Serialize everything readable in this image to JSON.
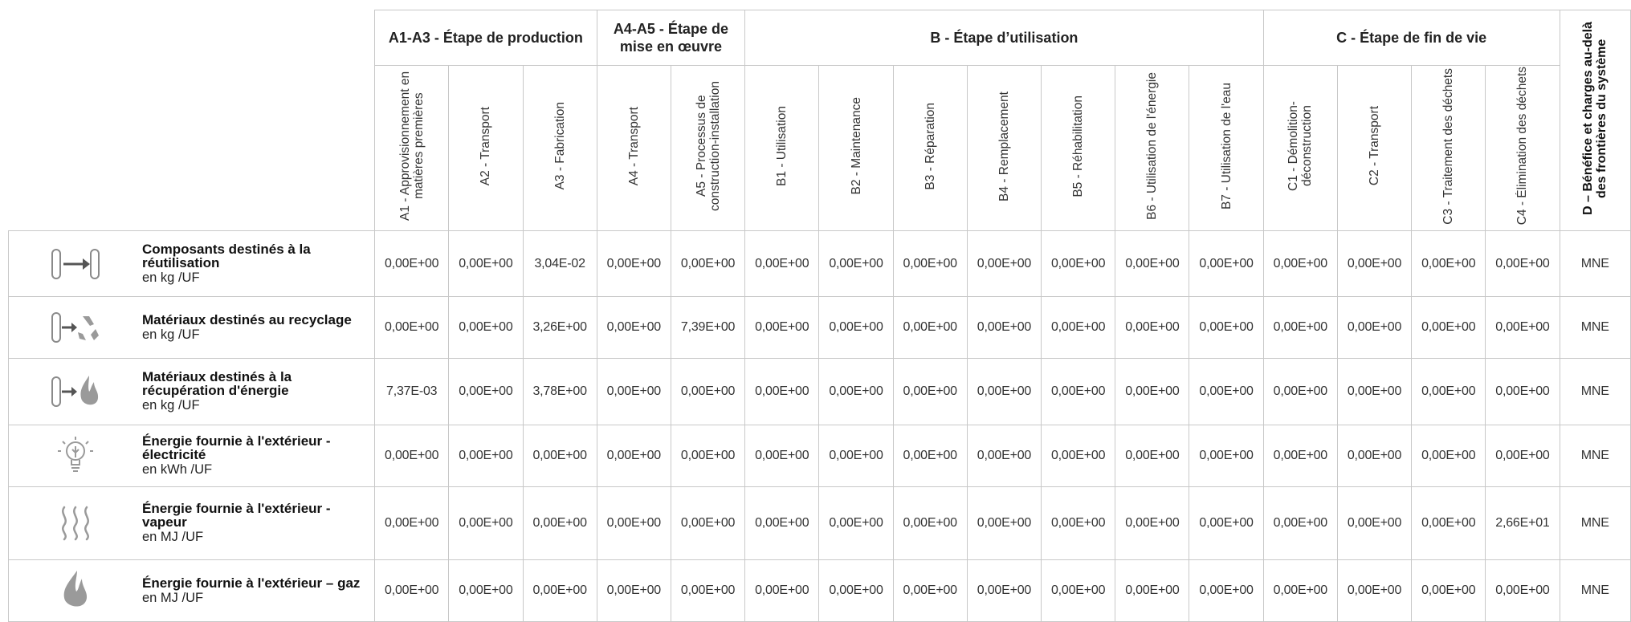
{
  "group_headers": [
    {
      "key": "A1-A3",
      "label": "A1-A3 - Étape de production",
      "span": 3
    },
    {
      "key": "A4-A5",
      "label": "A4-A5 - Étape de mise en œuvre",
      "span": 2
    },
    {
      "key": "B",
      "label": "B - Étape d’utilisation",
      "span": 7
    },
    {
      "key": "C",
      "label": "C - Étape de fin de vie",
      "span": 4
    }
  ],
  "d_header": "D – Bénéfice et charges au-delà des frontières du système",
  "sub_headers": [
    "A1 - Approvisionnement en matières premières",
    "A2 - Transport",
    "A3 - Fabrication",
    "A4 - Transport",
    "A5 - Processus de construction-installation",
    "B1 - Utilisation",
    "B2 - Maintenance",
    "B3 - Réparation",
    "B4 - Remplacement",
    "B5 - Réhabilitation",
    "B6 - Utilisation de l'énergie",
    "B7 - Utilisation de l'eau",
    "C1 - Démolition-déconstruction",
    "C2 - Transport",
    "C3 - Traitement des déchets",
    "C4 - Élimination des déchets"
  ],
  "rows": [
    {
      "icon": "reuse-icon",
      "label": "Composants destinés à la réutilisation",
      "unit": "en kg /UF",
      "values": [
        "0,00E+00",
        "0,00E+00",
        "3,04E-02",
        "0,00E+00",
        "0,00E+00",
        "0,00E+00",
        "0,00E+00",
        "0,00E+00",
        "0,00E+00",
        "0,00E+00",
        "0,00E+00",
        "0,00E+00",
        "0,00E+00",
        "0,00E+00",
        "0,00E+00",
        "0,00E+00",
        "MNE"
      ]
    },
    {
      "icon": "recycling-icon",
      "label": "Matériaux destinés au recyclage",
      "unit": "en kg /UF",
      "values": [
        "0,00E+00",
        "0,00E+00",
        "3,26E+00",
        "0,00E+00",
        "7,39E+00",
        "0,00E+00",
        "0,00E+00",
        "0,00E+00",
        "0,00E+00",
        "0,00E+00",
        "0,00E+00",
        "0,00E+00",
        "0,00E+00",
        "0,00E+00",
        "0,00E+00",
        "0,00E+00",
        "MNE"
      ]
    },
    {
      "icon": "energy-recovery-icon",
      "label": "Matériaux destinés à la récupération d'énergie",
      "unit": "en kg /UF",
      "values": [
        "7,37E-03",
        "0,00E+00",
        "3,78E+00",
        "0,00E+00",
        "0,00E+00",
        "0,00E+00",
        "0,00E+00",
        "0,00E+00",
        "0,00E+00",
        "0,00E+00",
        "0,00E+00",
        "0,00E+00",
        "0,00E+00",
        "0,00E+00",
        "0,00E+00",
        "0,00E+00",
        "MNE"
      ]
    },
    {
      "icon": "lightbulb-icon",
      "label": "Énergie fournie à l'extérieur - électricité",
      "unit": "en kWh /UF",
      "values": [
        "0,00E+00",
        "0,00E+00",
        "0,00E+00",
        "0,00E+00",
        "0,00E+00",
        "0,00E+00",
        "0,00E+00",
        "0,00E+00",
        "0,00E+00",
        "0,00E+00",
        "0,00E+00",
        "0,00E+00",
        "0,00E+00",
        "0,00E+00",
        "0,00E+00",
        "0,00E+00",
        "MNE"
      ]
    },
    {
      "icon": "steam-icon",
      "label": "Énergie fournie à l'extérieur - vapeur",
      "unit": "en MJ /UF",
      "values": [
        "0,00E+00",
        "0,00E+00",
        "0,00E+00",
        "0,00E+00",
        "0,00E+00",
        "0,00E+00",
        "0,00E+00",
        "0,00E+00",
        "0,00E+00",
        "0,00E+00",
        "0,00E+00",
        "0,00E+00",
        "0,00E+00",
        "0,00E+00",
        "0,00E+00",
        "2,66E+01",
        "MNE"
      ]
    },
    {
      "icon": "flame-icon",
      "label": "Énergie fournie à l'extérieur – gaz",
      "unit": "en MJ /UF",
      "values": [
        "0,00E+00",
        "0,00E+00",
        "0,00E+00",
        "0,00E+00",
        "0,00E+00",
        "0,00E+00",
        "0,00E+00",
        "0,00E+00",
        "0,00E+00",
        "0,00E+00",
        "0,00E+00",
        "0,00E+00",
        "0,00E+00",
        "0,00E+00",
        "0,00E+00",
        "0,00E+00",
        "MNE"
      ]
    }
  ],
  "colors": {
    "border": "#c8c8c8",
    "icon": "#8a8a8a",
    "text": "#222222"
  }
}
